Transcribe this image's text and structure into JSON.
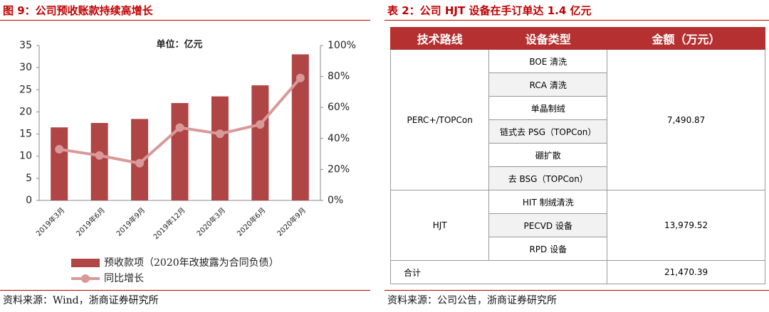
{
  "chart_data": {
    "type": "bar",
    "title": "图 9：公司预收账款持续高增长",
    "annotation": "单位：亿元",
    "source": "资料来源：Wind，浙商证券研究所",
    "categories": [
      "2019年3月",
      "2019年6月",
      "2019年9月",
      "2019年12月",
      "2020年3月",
      "2020年6月",
      "2020年9月"
    ],
    "series": [
      {
        "name": "预收款项（2020年改披露为合同负债）",
        "type": "bar",
        "color": "#b04545",
        "values": [
          16.5,
          17.5,
          18.4,
          22,
          23.5,
          26,
          33
        ]
      },
      {
        "name": "同比增长",
        "type": "line",
        "axis": "y2",
        "color": "#d99999",
        "values": [
          33,
          29,
          24,
          47,
          43,
          49,
          79
        ]
      }
    ],
    "ylim": [
      0,
      35
    ],
    "yticks": [
      0,
      5,
      10,
      15,
      20,
      25,
      30,
      35
    ],
    "y2lim": [
      0,
      100
    ],
    "y2ticks": [
      {
        "value": 0,
        "label": "0%"
      },
      {
        "value": 20,
        "label": "20%"
      },
      {
        "value": 40,
        "label": "40%"
      },
      {
        "value": 60,
        "label": "60%"
      },
      {
        "value": 80,
        "label": "80%"
      },
      {
        "value": 100,
        "label": "100%"
      }
    ],
    "grid": false,
    "legend": "bottom"
  },
  "table": {
    "title": "表 2：公司 HJT 设备在手订单达 1.4 亿元",
    "header": [
      "技术路线",
      "设备类型",
      "金额（万元）"
    ],
    "groups": [
      {
        "route": "PERC+/TOPCon",
        "types": [
          "BOE 清洗",
          "RCA 清洗",
          "单晶制绒",
          "链式去 PSG（TOPCon）",
          "硼扩散",
          "去 BSG（TOPCon）"
        ],
        "amount": "7,490.87"
      },
      {
        "route": "HJT",
        "types": [
          "HIT 制绒清洗",
          "PECVD 设备",
          "RPD 设备"
        ],
        "amount": "13,979.52"
      }
    ],
    "total": {
      "label": "合计",
      "amount": "21,470.39"
    },
    "source": "资料来源：公司公告，浙商证券研究所"
  }
}
